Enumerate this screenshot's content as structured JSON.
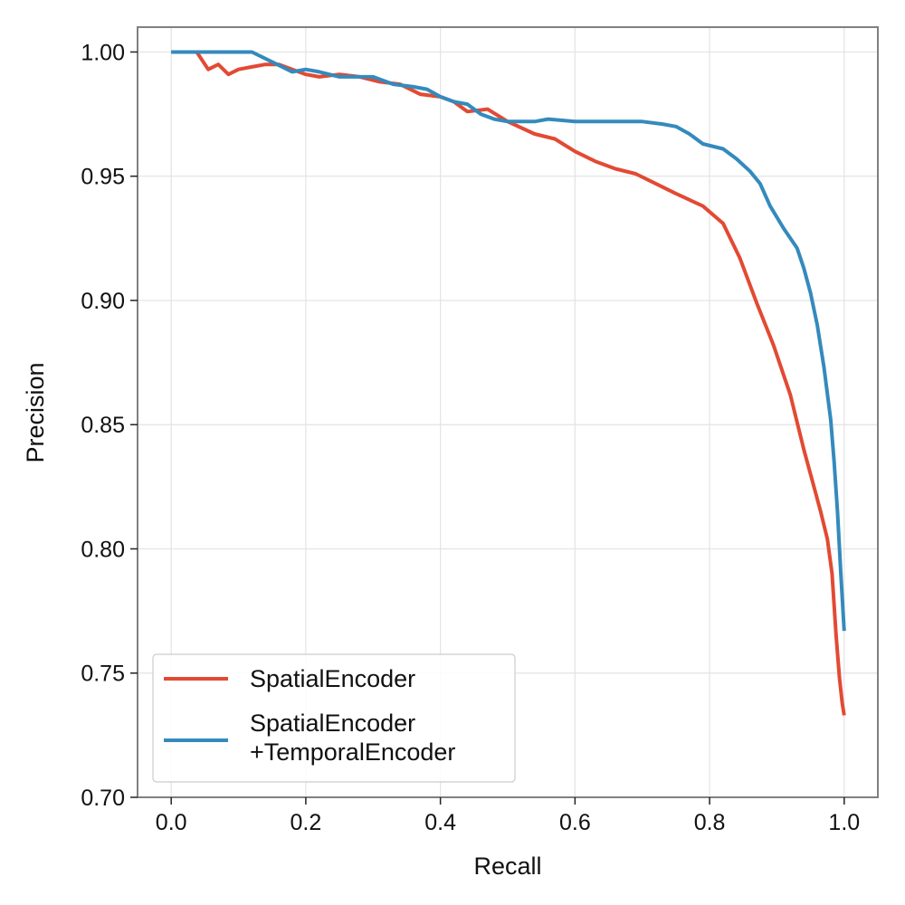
{
  "chart_data": {
    "type": "line",
    "title": "",
    "xlabel": "Recall",
    "ylabel": "Precision",
    "xlim": [
      -0.05,
      1.05
    ],
    "ylim": [
      0.7,
      1.01
    ],
    "xticks": [
      0.0,
      0.2,
      0.4,
      0.6,
      0.8,
      1.0
    ],
    "xtick_labels": [
      "0.0",
      "0.2",
      "0.4",
      "0.6",
      "0.8",
      "1.0"
    ],
    "yticks": [
      0.7,
      0.75,
      0.8,
      0.85,
      0.9,
      0.95,
      1.0
    ],
    "ytick_labels": [
      "0.70",
      "0.75",
      "0.80",
      "0.85",
      "0.90",
      "0.95",
      "1.00"
    ],
    "grid": true,
    "legend_position": "lower-left",
    "series": [
      {
        "name": "SpatialEncoder",
        "color": "#e24a33",
        "x": [
          0.0,
          0.02,
          0.038,
          0.055,
          0.07,
          0.085,
          0.1,
          0.12,
          0.14,
          0.16,
          0.18,
          0.2,
          0.22,
          0.25,
          0.28,
          0.31,
          0.34,
          0.37,
          0.4,
          0.42,
          0.44,
          0.47,
          0.5,
          0.54,
          0.57,
          0.6,
          0.63,
          0.66,
          0.69,
          0.72,
          0.75,
          0.79,
          0.82,
          0.845,
          0.87,
          0.895,
          0.92,
          0.94,
          0.955,
          0.965,
          0.975,
          0.982,
          0.988,
          0.993,
          0.997,
          1.0
        ],
        "y": [
          1.0,
          1.0,
          1.0,
          0.993,
          0.995,
          0.991,
          0.993,
          0.994,
          0.995,
          0.995,
          0.993,
          0.991,
          0.99,
          0.991,
          0.99,
          0.988,
          0.987,
          0.983,
          0.982,
          0.98,
          0.976,
          0.977,
          0.972,
          0.967,
          0.965,
          0.96,
          0.956,
          0.953,
          0.951,
          0.947,
          0.943,
          0.938,
          0.931,
          0.917,
          0.899,
          0.882,
          0.862,
          0.84,
          0.825,
          0.815,
          0.804,
          0.79,
          0.765,
          0.748,
          0.738,
          0.733
        ]
      },
      {
        "name": "SpatialEncoder\n+TemporalEncoder",
        "color": "#348abd",
        "x": [
          0.0,
          0.05,
          0.1,
          0.12,
          0.15,
          0.18,
          0.2,
          0.22,
          0.25,
          0.28,
          0.3,
          0.33,
          0.36,
          0.38,
          0.4,
          0.42,
          0.44,
          0.46,
          0.48,
          0.5,
          0.52,
          0.54,
          0.56,
          0.6,
          0.64,
          0.67,
          0.7,
          0.73,
          0.75,
          0.77,
          0.79,
          0.82,
          0.84,
          0.86,
          0.875,
          0.89,
          0.91,
          0.93,
          0.94,
          0.95,
          0.96,
          0.97,
          0.98,
          0.985,
          0.99,
          0.995,
          1.0
        ],
        "y": [
          1.0,
          1.0,
          1.0,
          1.0,
          0.996,
          0.992,
          0.993,
          0.992,
          0.99,
          0.99,
          0.99,
          0.987,
          0.986,
          0.985,
          0.982,
          0.98,
          0.979,
          0.975,
          0.973,
          0.972,
          0.972,
          0.972,
          0.973,
          0.972,
          0.972,
          0.972,
          0.972,
          0.971,
          0.97,
          0.967,
          0.963,
          0.961,
          0.957,
          0.952,
          0.947,
          0.938,
          0.929,
          0.921,
          0.913,
          0.903,
          0.89,
          0.873,
          0.852,
          0.835,
          0.815,
          0.79,
          0.767
        ]
      }
    ]
  }
}
